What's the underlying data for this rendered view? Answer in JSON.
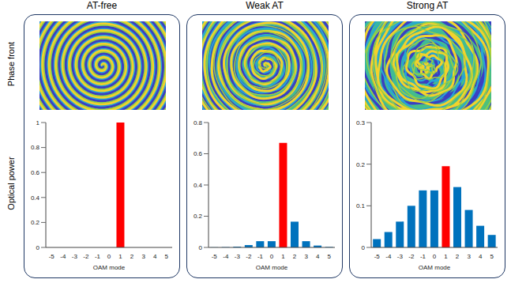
{
  "figure": {
    "image_label": "Phase front"
  },
  "chart_data": [
    {
      "type": "bar",
      "title": "AT-free",
      "x_label": "OAM mode",
      "y_label": "Optical power",
      "categories": [
        "-5",
        "-4",
        "-3",
        "-2",
        "-1",
        "0",
        "1",
        "2",
        "3",
        "4",
        "5"
      ],
      "values": [
        0,
        0,
        0,
        0,
        0,
        0,
        1,
        0,
        0,
        0,
        0
      ],
      "colors": [
        "#0072bd",
        "#0072bd",
        "#0072bd",
        "#0072bd",
        "#0072bd",
        "#0072bd",
        "#ff0000",
        "#0072bd",
        "#0072bd",
        "#0072bd",
        "#0072bd"
      ],
      "ylim": [
        0,
        1
      ],
      "yticks": [
        0,
        0.2,
        0.4,
        0.6,
        0.8,
        1
      ],
      "grid": false
    },
    {
      "type": "bar",
      "title": "Weak AT",
      "x_label": "OAM mode",
      "categories": [
        "-5",
        "-4",
        "-3",
        "-2",
        "-1",
        "0",
        "1",
        "2",
        "3",
        "4",
        "5"
      ],
      "values": [
        0.001,
        0.002,
        0.005,
        0.015,
        0.04,
        0.04,
        0.67,
        0.165,
        0.04,
        0.012,
        0.003
      ],
      "colors": [
        "#0072bd",
        "#0072bd",
        "#0072bd",
        "#0072bd",
        "#0072bd",
        "#0072bd",
        "#ff0000",
        "#0072bd",
        "#0072bd",
        "#0072bd",
        "#0072bd"
      ],
      "ylim": [
        0,
        0.8
      ],
      "yticks": [
        0,
        0.2,
        0.4,
        0.6,
        0.8
      ],
      "grid": false
    },
    {
      "type": "bar",
      "title": "Strong AT",
      "x_label": "OAM mode",
      "categories": [
        "-5",
        "-4",
        "-3",
        "-2",
        "-1",
        "0",
        "1",
        "2",
        "3",
        "4",
        "5"
      ],
      "values": [
        0.02,
        0.037,
        0.062,
        0.1,
        0.137,
        0.137,
        0.195,
        0.145,
        0.09,
        0.052,
        0.03
      ],
      "colors": [
        "#0072bd",
        "#0072bd",
        "#0072bd",
        "#0072bd",
        "#0072bd",
        "#0072bd",
        "#ff0000",
        "#0072bd",
        "#0072bd",
        "#0072bd",
        "#0072bd"
      ],
      "ylim": [
        0,
        0.3
      ],
      "yticks": [
        0,
        0.1,
        0.2,
        0.3
      ],
      "grid": false
    }
  ]
}
